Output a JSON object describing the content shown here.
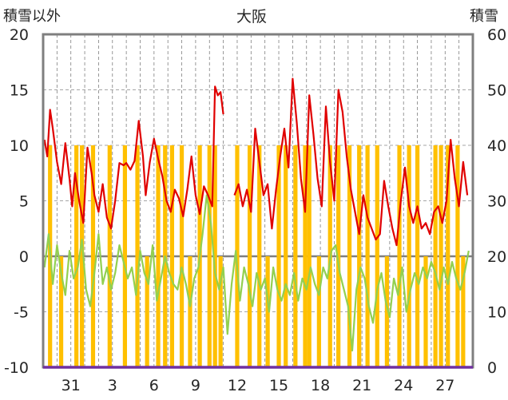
{
  "chart_data": {
    "type": "line",
    "title": "大阪",
    "ylabel_left": "積雪以外",
    "ylabel_right": "積雪",
    "ylim_left": [
      -10,
      20
    ],
    "ylim_right": [
      0,
      60
    ],
    "yticks_left": [
      "20",
      "15",
      "10",
      "5",
      "0",
      "-5",
      "-10"
    ],
    "yticks_right": [
      "60",
      "50",
      "40",
      "30",
      "20",
      "10",
      "0"
    ],
    "xticks": [
      "31",
      "3",
      "6",
      "9",
      "12",
      "15",
      "18",
      "21",
      "24",
      "27"
    ],
    "x_tick_positions": [
      31,
      34,
      37,
      40,
      43,
      46,
      49,
      52,
      55,
      58
    ],
    "xlim": [
      29,
      60
    ],
    "grid": true,
    "colors": {
      "red_series": "#e00000",
      "green_series": "#92d050",
      "orange_bars": "#ffc000",
      "frame": "#7f7f7f",
      "baseline": "#7030a0"
    },
    "series": [
      {
        "axis": "left",
        "color": "#e00000",
        "x": [
          29.1,
          29.3,
          29.5,
          29.7,
          30.0,
          30.3,
          30.6,
          30.9,
          31.1,
          31.3,
          31.6,
          31.9,
          32.2,
          32.5,
          32.7,
          33.0,
          33.3,
          33.6,
          33.9,
          34.2,
          34.5,
          34.8,
          35.0,
          35.3,
          35.6,
          35.9,
          36.2,
          36.4,
          36.7,
          37.0,
          37.3,
          37.6,
          37.9,
          38.2,
          38.5,
          38.8,
          39.1,
          39.4,
          39.7,
          40.0,
          40.3,
          40.6,
          40.9,
          41.2,
          41.4,
          41.6,
          41.8,
          42.0
        ],
        "y": [
          10.5,
          9.0,
          13.2,
          11.5,
          8.5,
          6.5,
          10.2,
          7.0,
          4.5,
          7.5,
          5.0,
          3.0,
          9.8,
          7.5,
          5.5,
          4.0,
          6.5,
          3.5,
          2.5,
          5.0,
          8.4,
          8.2,
          8.4,
          7.8,
          8.6,
          12.2,
          9.0,
          5.5,
          8.5,
          10.6,
          8.8,
          7.2,
          5.0,
          4.0,
          6.0,
          5.2,
          3.6,
          6.0,
          9.0,
          5.5,
          3.8,
          6.3,
          5.5,
          4.5,
          15.3,
          14.5,
          14.8,
          12.8
        ]
      },
      {
        "axis": "left",
        "color": "#e00000",
        "x": [
          42.8,
          43.1,
          43.4,
          43.7,
          44.0,
          44.3,
          44.6,
          44.9,
          45.2,
          45.5,
          45.8,
          46.1,
          46.4,
          46.7,
          47.0,
          47.3,
          47.6,
          47.9,
          48.2,
          48.5,
          48.8,
          49.1,
          49.4,
          49.7,
          50.0,
          50.3,
          50.6,
          50.9,
          51.2,
          51.5,
          51.8,
          52.1,
          52.4,
          52.7,
          53.0,
          53.3,
          53.6,
          53.9,
          54.2,
          54.5,
          54.8,
          55.1,
          55.4,
          55.7,
          56.0,
          56.3,
          56.6,
          56.9,
          57.2,
          57.5,
          57.8,
          58.1,
          58.4,
          58.7,
          59.0,
          59.3,
          59.6
        ],
        "y": [
          5.5,
          6.5,
          4.5,
          6.0,
          4.0,
          11.5,
          8.5,
          5.5,
          6.5,
          2.5,
          6.0,
          9.0,
          11.5,
          8.0,
          16.0,
          12.0,
          7.0,
          4.0,
          14.5,
          11.0,
          7.0,
          4.5,
          13.5,
          8.5,
          5.0,
          15.0,
          13.0,
          9.0,
          6.0,
          4.0,
          2.0,
          5.5,
          3.5,
          2.5,
          1.5,
          2.0,
          6.8,
          4.5,
          2.5,
          1.0,
          5.0,
          8.0,
          4.5,
          3.0,
          4.5,
          2.5,
          3.0,
          2.0,
          4.0,
          4.5,
          3.0,
          5.0,
          10.5,
          7.0,
          4.5,
          8.5,
          5.5
        ]
      },
      {
        "axis": "left",
        "color": "#92d050",
        "x": [
          29.1,
          29.4,
          29.7,
          30.0,
          30.3,
          30.6,
          30.9,
          31.2,
          31.5,
          31.8,
          32.1,
          32.4,
          32.7,
          33.0,
          33.3,
          33.6,
          33.9,
          34.2,
          34.5,
          34.8,
          35.1,
          35.4,
          35.7,
          36.0,
          36.3,
          36.6,
          36.9,
          37.2,
          37.5,
          37.8,
          38.1,
          38.4,
          38.7,
          39.0,
          39.3,
          39.6,
          39.9,
          40.2,
          40.5,
          40.8,
          41.1,
          41.4,
          41.7,
          42.0,
          42.3,
          42.6,
          42.9,
          43.2,
          43.5,
          43.8,
          44.1,
          44.4,
          44.7,
          45.0,
          45.3,
          45.6,
          45.9,
          46.2,
          46.5,
          46.8,
          47.1,
          47.4,
          47.7,
          48.0,
          48.3,
          48.6,
          48.9,
          49.2,
          49.5,
          49.8,
          50.1,
          50.4,
          50.7,
          51.0,
          51.3,
          51.6,
          51.9,
          52.2,
          52.5,
          52.8,
          53.1,
          53.4,
          53.7,
          54.0,
          54.3,
          54.6,
          54.9,
          55.2,
          55.5,
          55.8,
          56.1,
          56.4,
          56.7,
          57.0,
          57.3,
          57.6,
          57.9,
          58.2,
          58.5,
          58.8,
          59.1,
          59.4,
          59.7
        ],
        "y": [
          -1.0,
          2.0,
          -2.5,
          1.0,
          -1.5,
          -3.5,
          0.5,
          -2.0,
          -1.0,
          1.5,
          -3.0,
          -4.5,
          -1.5,
          2.0,
          -2.5,
          -1.0,
          -3.0,
          -1.5,
          1.0,
          -0.5,
          -2.0,
          -1.0,
          -3.5,
          0.5,
          -1.5,
          -2.5,
          1.0,
          -4.0,
          -2.0,
          0.0,
          -1.5,
          -2.5,
          -3.0,
          -1.0,
          -2.5,
          -4.5,
          -2.0,
          -1.0,
          2.0,
          5.5,
          3.0,
          -1.5,
          -3.0,
          -1.0,
          -7.0,
          -2.5,
          0.5,
          -4.0,
          -1.0,
          -2.5,
          -4.5,
          -1.5,
          -3.0,
          -2.0,
          -5.0,
          -1.0,
          -3.0,
          -4.0,
          -2.5,
          -3.5,
          -1.5,
          -4.0,
          -2.0,
          -3.0,
          -1.0,
          -2.5,
          -3.5,
          -1.0,
          -2.0,
          0.5,
          1.0,
          -1.5,
          -3.0,
          -4.5,
          -8.5,
          -3.0,
          -1.0,
          -2.0,
          -4.5,
          -6.0,
          -3.0,
          -1.5,
          -4.0,
          -5.5,
          -2.0,
          -3.5,
          -1.0,
          -5.0,
          -3.0,
          -1.5,
          -2.5,
          -1.0,
          -2.0,
          -0.5,
          -1.5,
          -3.0,
          -1.0,
          -2.5,
          -0.5,
          -2.0,
          -3.0,
          -1.5,
          0.5
        ]
      }
    ],
    "bars": {
      "axis": "right",
      "color": "#ffc000",
      "x": [
        29.5,
        30.3,
        31.4,
        31.8,
        32.6,
        33.8,
        34.9,
        35.8,
        36.5,
        37.3,
        37.8,
        38.3,
        39.0,
        39.6,
        40.3,
        41.0,
        41.4,
        41.8,
        43.0,
        43.9,
        44.6,
        45.2,
        46.0,
        46.5,
        47.2,
        47.9,
        48.2,
        48.9,
        49.7,
        50.3,
        51.1,
        51.8,
        52.4,
        53.1,
        53.8,
        54.7,
        55.4,
        56.0,
        56.6,
        57.3,
        57.7,
        58.2,
        58.9,
        59.3
      ],
      "y": [
        40,
        20,
        40,
        40,
        40,
        40,
        40,
        40,
        20,
        40,
        40,
        40,
        40,
        20,
        40,
        40,
        40,
        20,
        40,
        40,
        40,
        20,
        40,
        40,
        40,
        40,
        40,
        20,
        40,
        40,
        40,
        40,
        40,
        40,
        20,
        40,
        40,
        40,
        20,
        40,
        40,
        40,
        40,
        20
      ]
    }
  }
}
